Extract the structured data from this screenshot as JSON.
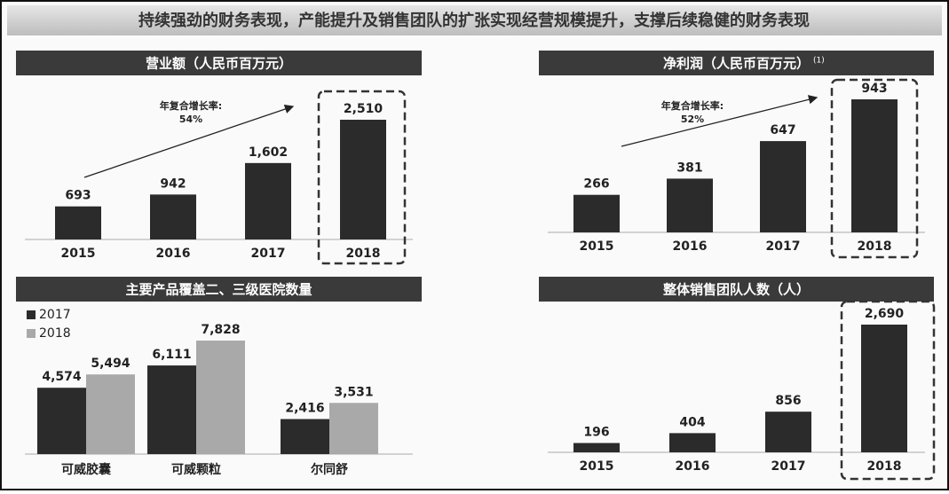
{
  "title": "持续强劲的财务表现，产能提升及销售团队的扩张实现经营规模提升，支撑后续稳健的财务表现",
  "chart_data": [
    {
      "type": "bar",
      "title": "营业额（人民币百万元）",
      "categories": [
        "2015",
        "2016",
        "2017",
        "2018"
      ],
      "values": [
        693,
        942,
        1602,
        2510
      ],
      "value_labels": [
        "693",
        "942",
        "1,602",
        "2,510"
      ],
      "color": "#2b2b2b",
      "annotations": [
        "年复合增长率:",
        "54%"
      ]
    },
    {
      "type": "bar",
      "title": "净利润（人民币百万元）",
      "title_note": "(1)",
      "categories": [
        "2015",
        "2016",
        "2017",
        "2018"
      ],
      "values": [
        266,
        381,
        647,
        943
      ],
      "color": "#2b2b2b",
      "annotations": [
        "年复合增长率:",
        "52%"
      ]
    },
    {
      "type": "grouped-bar",
      "title": "主要产品覆盖二、三级医院数量",
      "categories": [
        "可威胶囊",
        "可威颗粒",
        "尔同舒"
      ],
      "series": [
        {
          "name": "2017",
          "color": "#2b2b2b",
          "values": [
            4574,
            6111,
            2416
          ],
          "value_labels": [
            "4,574",
            "6,111",
            "2,416"
          ]
        },
        {
          "name": "2018",
          "color": "#a9a9a9",
          "values": [
            5494,
            7828,
            3531
          ],
          "value_labels": [
            "5,494",
            "7,828",
            "3,531"
          ]
        }
      ]
    },
    {
      "type": "bar",
      "title": "整体销售团队人数（人）",
      "categories": [
        "2015",
        "2016",
        "2017",
        "2018"
      ],
      "values": [
        196,
        404,
        856,
        2690
      ],
      "value_labels": [
        "196",
        "404",
        "856",
        "2,690"
      ],
      "color": "#2b2b2b"
    }
  ]
}
